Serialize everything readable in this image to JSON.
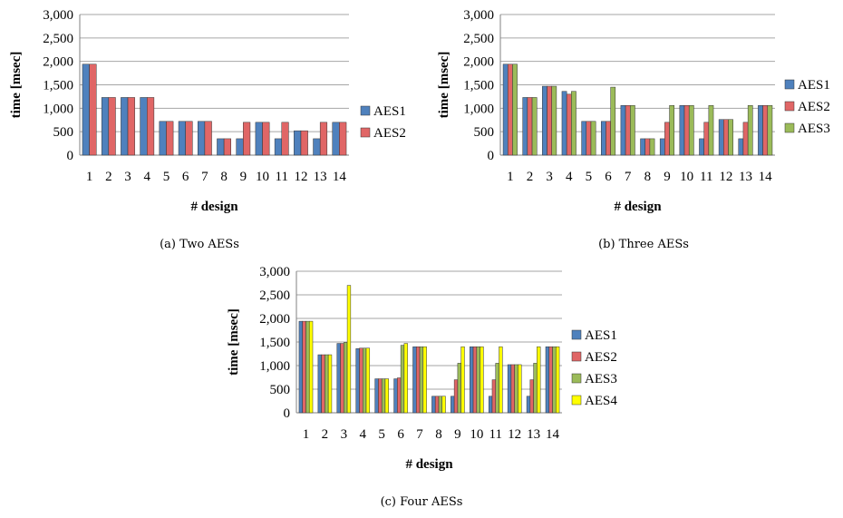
{
  "colors": {
    "AES1": "#4f81bd",
    "AES2": "#e06666",
    "AES3": "#9bbb59",
    "AES4": "#ffff00",
    "grid": "#a6a6a6",
    "barStroke": "#333333"
  },
  "chart_data": [
    {
      "type": "bar",
      "caption": "(a)  Two AESs",
      "categories": [
        "1",
        "2",
        "3",
        "4",
        "5",
        "6",
        "7",
        "8",
        "9",
        "10",
        "11",
        "12",
        "13",
        "14"
      ],
      "xlabel": "# design",
      "ylabel": "time [msec]",
      "ylim": [
        0,
        3000
      ],
      "yticks": [
        "0",
        "500",
        "1,000",
        "1,500",
        "2,000",
        "2,500",
        "3,000"
      ],
      "grid": true,
      "legend": "right",
      "series": [
        {
          "name": "AES1",
          "values": [
            1940,
            1230,
            1230,
            1230,
            720,
            720,
            720,
            350,
            350,
            700,
            350,
            520,
            350,
            700
          ]
        },
        {
          "name": "AES2",
          "values": [
            1940,
            1230,
            1230,
            1230,
            720,
            720,
            720,
            350,
            700,
            700,
            700,
            520,
            700,
            700
          ]
        }
      ]
    },
    {
      "type": "bar",
      "caption": "(b)  Three AESs",
      "categories": [
        "1",
        "2",
        "3",
        "4",
        "5",
        "6",
        "7",
        "8",
        "9",
        "10",
        "11",
        "12",
        "13",
        "14"
      ],
      "xlabel": "# design",
      "ylabel": "time [msec]",
      "ylim": [
        0,
        3000
      ],
      "yticks": [
        "0",
        "500",
        "1,000",
        "1,500",
        "2,000",
        "2,500",
        "3,000"
      ],
      "grid": true,
      "legend": "right",
      "series": [
        {
          "name": "AES1",
          "values": [
            1940,
            1230,
            1470,
            1360,
            720,
            720,
            1060,
            350,
            350,
            1060,
            350,
            760,
            350,
            1060
          ]
        },
        {
          "name": "AES2",
          "values": [
            1940,
            1230,
            1470,
            1300,
            720,
            720,
            1060,
            350,
            700,
            1060,
            700,
            760,
            700,
            1060
          ]
        },
        {
          "name": "AES3",
          "values": [
            1940,
            1230,
            1470,
            1360,
            720,
            1450,
            1060,
            350,
            1060,
            1060,
            1060,
            760,
            1060,
            1060
          ]
        }
      ]
    },
    {
      "type": "bar",
      "caption": "(c)  Four AESs",
      "categories": [
        "1",
        "2",
        "3",
        "4",
        "5",
        "6",
        "7",
        "8",
        "9",
        "10",
        "11",
        "12",
        "13",
        "14"
      ],
      "xlabel": "# design",
      "ylabel": "time [msec]",
      "ylim": [
        0,
        3000
      ],
      "yticks": [
        "0",
        "500",
        "1,000",
        "1,500",
        "2,000",
        "2,500",
        "3,000"
      ],
      "grid": true,
      "legend": "right",
      "series": [
        {
          "name": "AES1",
          "values": [
            1940,
            1230,
            1470,
            1360,
            720,
            720,
            1400,
            350,
            350,
            1400,
            350,
            1020,
            350,
            1400
          ]
        },
        {
          "name": "AES2",
          "values": [
            1940,
            1230,
            1470,
            1370,
            720,
            740,
            1400,
            350,
            700,
            1400,
            700,
            1020,
            700,
            1400
          ]
        },
        {
          "name": "AES3",
          "values": [
            1940,
            1230,
            1490,
            1370,
            720,
            1430,
            1400,
            350,
            1050,
            1400,
            1050,
            1020,
            1050,
            1400
          ]
        },
        {
          "name": "AES4",
          "values": [
            1940,
            1230,
            2700,
            1370,
            720,
            1470,
            1400,
            350,
            1400,
            1400,
            1400,
            1020,
            1400,
            1400
          ]
        }
      ]
    }
  ]
}
